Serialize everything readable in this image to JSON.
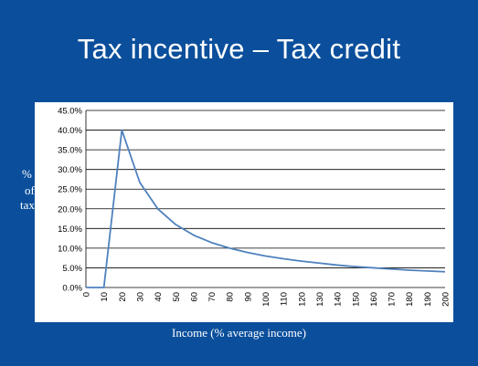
{
  "slide": {
    "title": "Tax incentive – Tax credit"
  },
  "axis": {
    "ylabel_fragments": [
      "%",
      "of",
      "tax"
    ],
    "xlabel": "Income (% average income)"
  },
  "colors": {
    "background": "#0b4f9c",
    "panel": "#ffffff",
    "line": "#4f81bd",
    "grid": "#000000"
  },
  "chart_data": {
    "type": "line",
    "title": "",
    "xlabel": "Income (% average income)",
    "ylabel": "%\nof\ntax",
    "x": [
      0,
      10,
      20,
      30,
      40,
      50,
      60,
      70,
      80,
      90,
      100,
      110,
      120,
      130,
      140,
      150,
      160,
      170,
      180,
      190,
      200
    ],
    "series": [
      {
        "values": [
          0.0,
          0.0,
          40.0,
          26.7,
          20.0,
          16.0,
          13.3,
          11.4,
          10.0,
          8.9,
          8.0,
          7.3,
          6.7,
          6.2,
          5.7,
          5.3,
          5.0,
          4.7,
          4.4,
          4.2,
          4.0
        ]
      }
    ],
    "y_ticks": [
      "0.0%",
      "5.0%",
      "10.0%",
      "15.0%",
      "20.0%",
      "25.0%",
      "30.0%",
      "35.0%",
      "40.0%",
      "45.0%"
    ],
    "x_ticks": [
      "0",
      "10",
      "20",
      "30",
      "40",
      "50",
      "60",
      "70",
      "80",
      "90",
      "100",
      "110",
      "120",
      "130",
      "140",
      "150",
      "160",
      "170",
      "180",
      "190",
      "200"
    ],
    "ylim": [
      0,
      45
    ],
    "xlim": [
      0,
      200
    ],
    "grid": "horizontal",
    "legend": "none"
  }
}
